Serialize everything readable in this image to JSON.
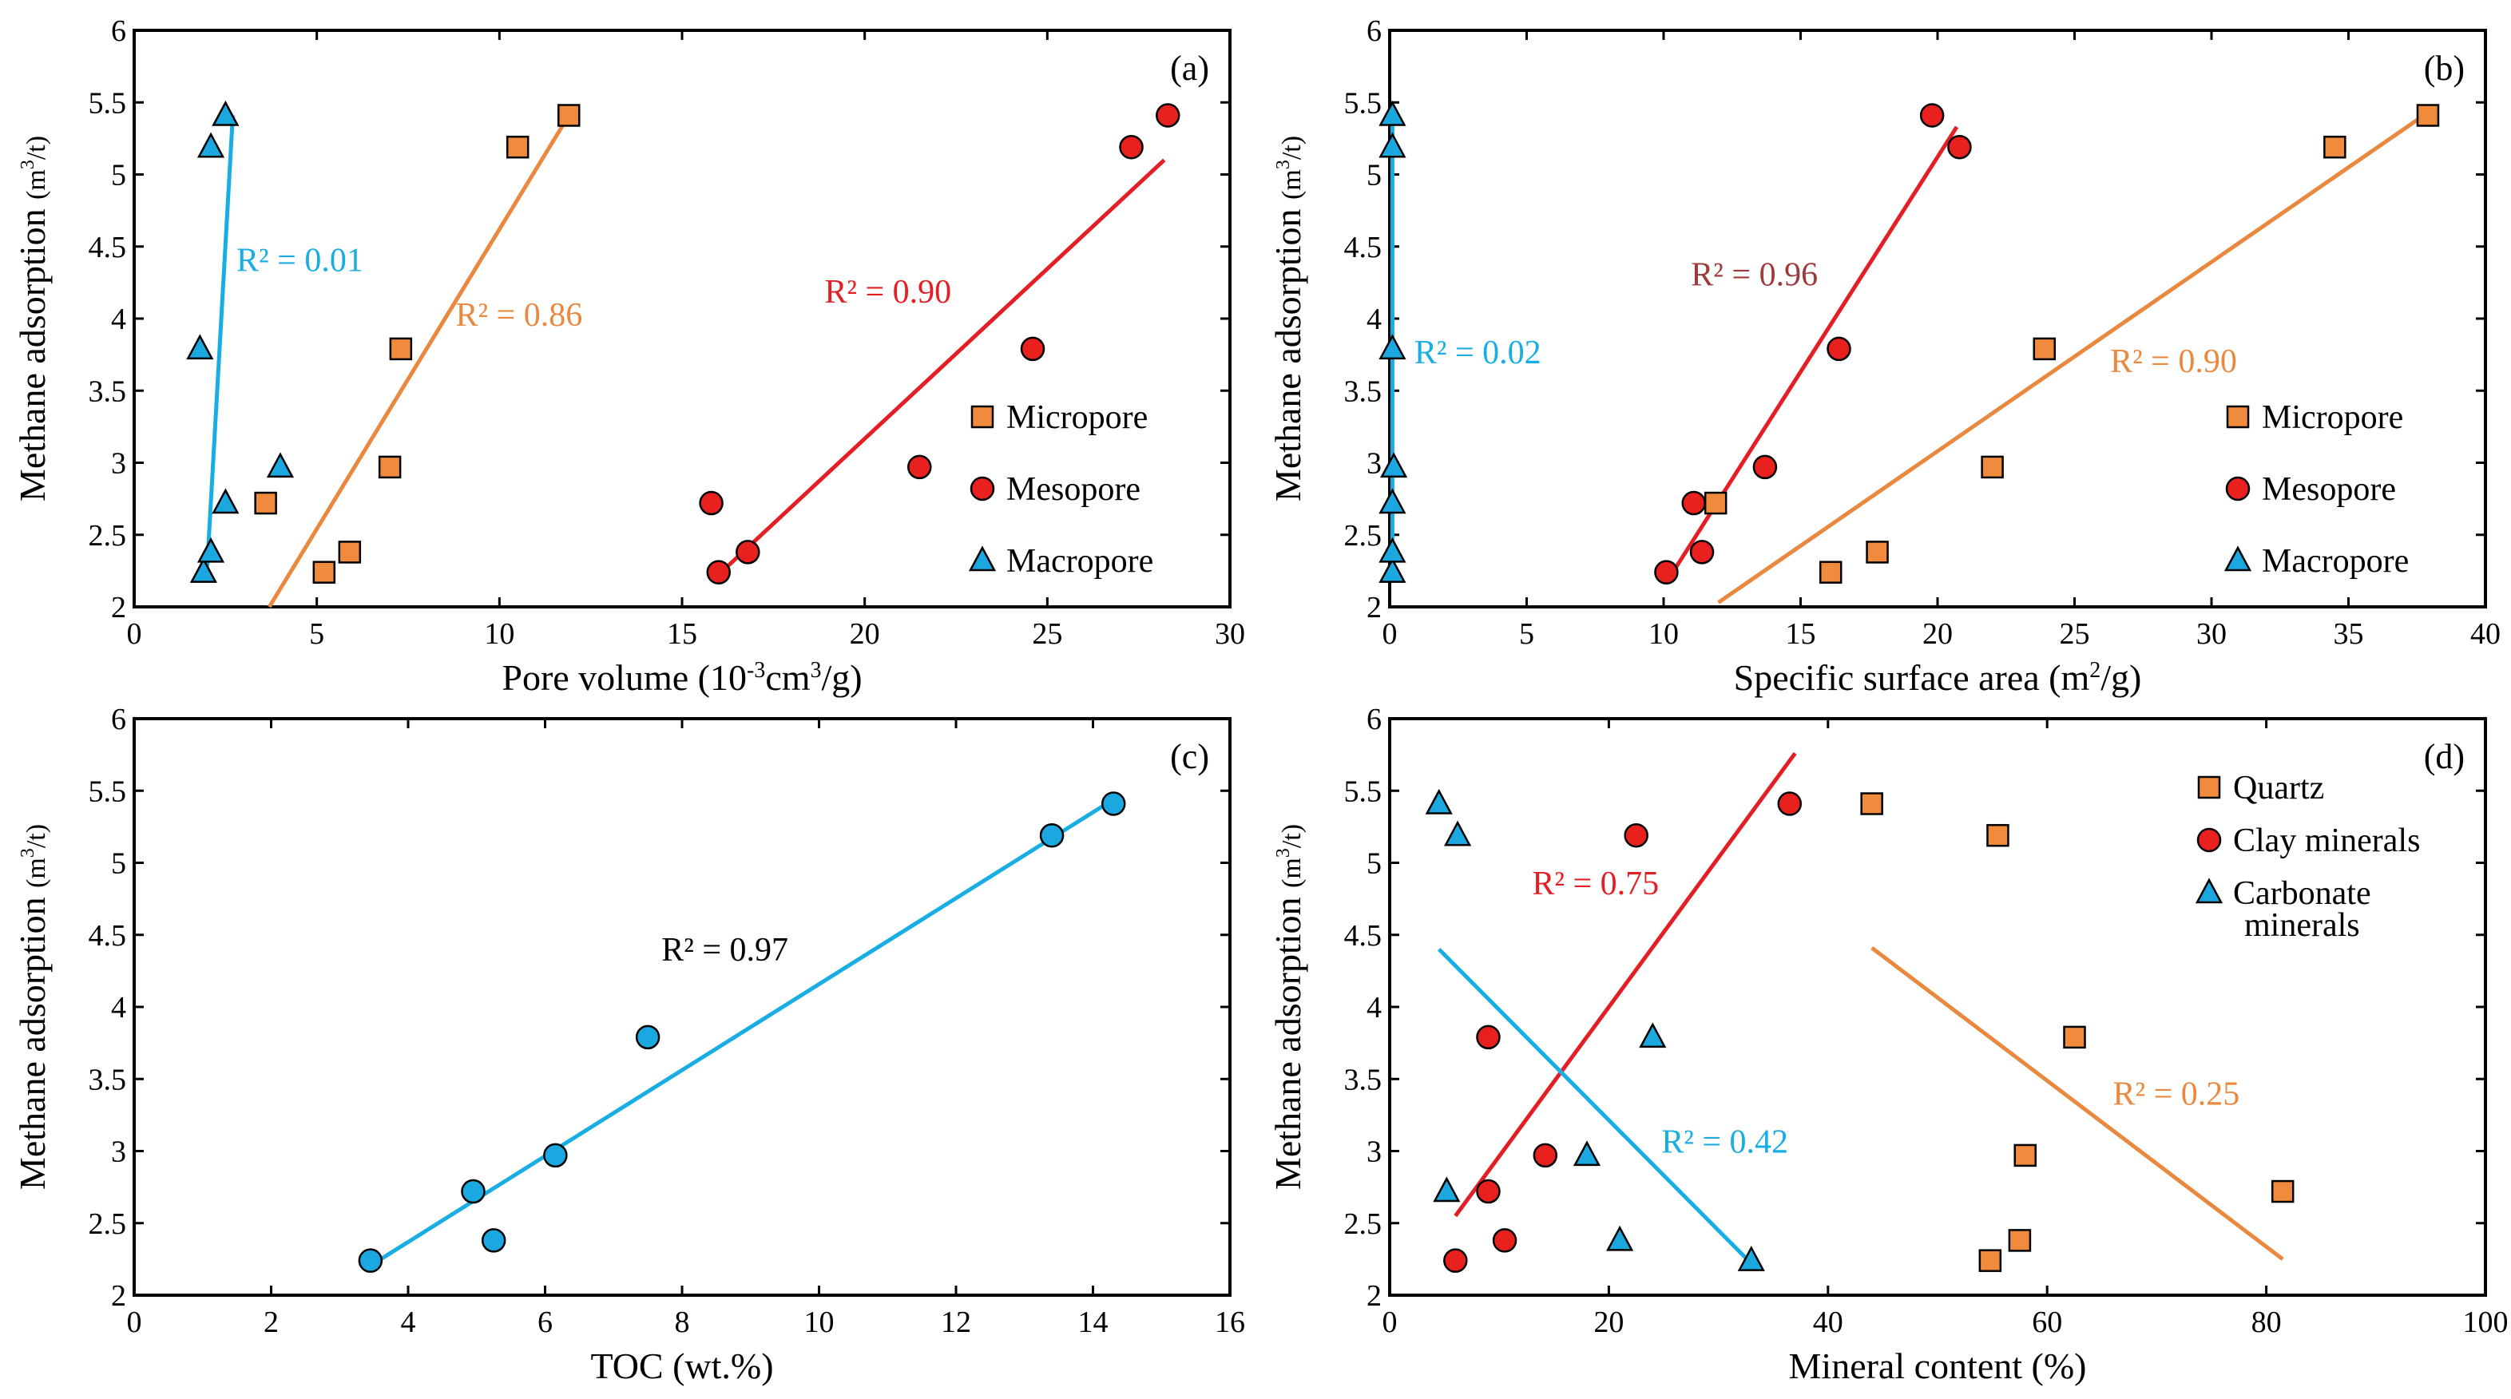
{
  "colors": {
    "micropore": "#F08A3C",
    "mesopore": "#E8201E",
    "macropore": "#1BA8E0",
    "toc": "#1BA8E0",
    "orange_line": "#E8893F",
    "red_line": "#E31F25",
    "blue_line": "#19AEE3",
    "r2_b_meso": "#9E3A3A"
  },
  "chart_data": [
    {
      "type": "scatter",
      "panel_label": "(a)",
      "xlabel_text": "Pore volume (10",
      "xlabel_sup1": "-3",
      "xlabel_mid": "cm",
      "xlabel_sup2": "3",
      "xlabel_end": "/g)",
      "ylabel_text": "Methane adsorption",
      "ylabel_unit": "(m",
      "ylabel_sup": "3",
      "ylabel_unit_end": "/t)",
      "xlim": [
        0,
        30
      ],
      "ylim": [
        2,
        6
      ],
      "xticks": [
        0,
        5,
        10,
        15,
        20,
        25,
        30
      ],
      "yticks": [
        2,
        2.5,
        3,
        3.5,
        4,
        4.5,
        5,
        5.5,
        6
      ],
      "legend": [
        "Micropore",
        "Mesopore",
        "Macropore"
      ],
      "series": [
        {
          "name": "Micropore",
          "marker": "square",
          "color_key": "micropore",
          "x": [
            5.2,
            5.9,
            3.6,
            7.0,
            7.3,
            10.5,
            11.9
          ],
          "y": [
            2.24,
            2.38,
            2.72,
            2.97,
            3.79,
            5.19,
            5.41
          ]
        },
        {
          "name": "Mesopore",
          "marker": "circle",
          "color_key": "mesopore",
          "x": [
            16.0,
            16.8,
            15.8,
            21.5,
            24.6,
            27.3,
            28.3
          ],
          "y": [
            2.24,
            2.38,
            2.72,
            2.97,
            3.79,
            5.19,
            5.41
          ]
        },
        {
          "name": "Macropore",
          "marker": "triangle",
          "color_key": "macropore",
          "x": [
            1.9,
            2.1,
            2.5,
            4.0,
            1.8,
            2.1,
            2.5
          ],
          "y": [
            2.24,
            2.38,
            2.72,
            2.97,
            3.79,
            5.19,
            5.41
          ]
        }
      ],
      "fits": [
        {
          "x1": 3.7,
          "y1": 2.0,
          "x2": 11.9,
          "y2": 5.41,
          "color_key": "orange_line",
          "r2": "R² = 0.86",
          "label_x": 8.8,
          "label_y": 3.95,
          "label_color_key": "orange_line"
        },
        {
          "x1": 15.9,
          "y1": 2.2,
          "x2": 28.2,
          "y2": 5.1,
          "color_key": "red_line",
          "r2": "R² = 0.90",
          "label_x": 18.9,
          "label_y": 4.11,
          "label_color_key": "red_line"
        },
        {
          "x1": 2.0,
          "y1": 2.28,
          "x2": 2.7,
          "y2": 5.41,
          "color_key": "blue_line",
          "r2": "R² = 0.01",
          "label_x": 2.8,
          "label_y": 4.33,
          "label_color_key": "blue_line"
        }
      ]
    },
    {
      "type": "scatter",
      "panel_label": "(b)",
      "xlabel_text": "Specific surface area (m",
      "xlabel_sup1": "2",
      "xlabel_mid": "/g)",
      "xlabel_sup2": "",
      "xlabel_end": "",
      "ylabel_text": "Methane adsorption",
      "ylabel_unit": "(m",
      "ylabel_sup": "3",
      "ylabel_unit_end": "/t)",
      "xlim": [
        0,
        40
      ],
      "ylim": [
        2,
        6
      ],
      "xticks": [
        0,
        5,
        10,
        15,
        20,
        25,
        30,
        35,
        40
      ],
      "yticks": [
        2,
        2.5,
        3,
        3.5,
        4,
        4.5,
        5,
        5.5,
        6
      ],
      "legend": [
        "Micropore",
        "Mesopore",
        "Macropore"
      ],
      "series": [
        {
          "name": "Micropore",
          "marker": "square",
          "color_key": "micropore",
          "x": [
            16.1,
            17.8,
            11.9,
            22.0,
            23.9,
            34.5,
            37.9
          ],
          "y": [
            2.24,
            2.38,
            2.72,
            2.97,
            3.79,
            5.19,
            5.41
          ]
        },
        {
          "name": "Mesopore",
          "marker": "circle",
          "color_key": "mesopore",
          "x": [
            10.1,
            11.4,
            11.1,
            13.7,
            16.4,
            20.8,
            19.8
          ],
          "y": [
            2.24,
            2.38,
            2.72,
            2.97,
            3.79,
            5.19,
            5.41
          ]
        },
        {
          "name": "Macropore",
          "marker": "triangle",
          "color_key": "macropore",
          "x": [
            0.1,
            0.1,
            0.1,
            0.15,
            0.1,
            0.1,
            0.1
          ],
          "y": [
            2.24,
            2.38,
            2.72,
            2.97,
            3.79,
            5.19,
            5.41
          ]
        }
      ],
      "fits": [
        {
          "x1": 12.0,
          "y1": 2.03,
          "x2": 37.9,
          "y2": 5.43,
          "color_key": "orange_line",
          "r2": "R² = 0.90",
          "label_x": 26.3,
          "label_y": 3.63,
          "label_color_key": "orange_line"
        },
        {
          "x1": 10.1,
          "y1": 2.17,
          "x2": 20.7,
          "y2": 5.33,
          "color_key": "red_line",
          "r2": "R² = 0.96",
          "label_x": 11.0,
          "label_y": 4.23,
          "label_color_key": "r2_b_meso"
        },
        {
          "x1": 0.1,
          "y1": 2.22,
          "x2": 0.1,
          "y2": 5.45,
          "color_key": "blue_line",
          "r2": "R² = 0.02",
          "label_x": 0.9,
          "label_y": 3.69,
          "label_color_key": "blue_line"
        }
      ]
    },
    {
      "type": "scatter",
      "panel_label": "(c)",
      "xlabel_text": "TOC (wt.%)",
      "xlabel_sup1": "",
      "xlabel_mid": "",
      "xlabel_sup2": "",
      "xlabel_end": "",
      "ylabel_text": "Methane adsorption",
      "ylabel_unit": "(m",
      "ylabel_sup": "3",
      "ylabel_unit_end": "/t)",
      "xlim": [
        0,
        16
      ],
      "ylim": [
        2,
        6
      ],
      "xticks": [
        0,
        2,
        4,
        6,
        8,
        10,
        12,
        14,
        16
      ],
      "yticks": [
        2,
        2.5,
        3,
        3.5,
        4,
        4.5,
        5,
        5.5,
        6
      ],
      "legend": [],
      "series": [
        {
          "name": "TOC",
          "marker": "circle",
          "color_key": "toc",
          "x": [
            3.45,
            5.25,
            4.95,
            6.15,
            7.5,
            13.4,
            14.3
          ],
          "y": [
            2.24,
            2.38,
            2.72,
            2.97,
            3.79,
            5.19,
            5.41
          ]
        }
      ],
      "fits": [
        {
          "x1": 3.5,
          "y1": 2.22,
          "x2": 14.3,
          "y2": 5.44,
          "color_key": "blue_line",
          "r2": "R² = 0.97",
          "label_x": 7.7,
          "label_y": 4.32,
          "label_color_key": "black"
        }
      ]
    },
    {
      "type": "scatter",
      "panel_label": "(d)",
      "xlabel_text": "Mineral content (%)",
      "xlabel_sup1": "",
      "xlabel_mid": "",
      "xlabel_sup2": "",
      "xlabel_end": "",
      "ylabel_text": "Methane adsorption",
      "ylabel_unit": "(m",
      "ylabel_sup": "3",
      "ylabel_unit_end": "/t)",
      "xlim": [
        0,
        100
      ],
      "ylim": [
        2,
        6
      ],
      "xticks": [
        0,
        20,
        40,
        60,
        80,
        100
      ],
      "yticks": [
        2,
        2.5,
        3,
        3.5,
        4,
        4.5,
        5,
        5.5,
        6
      ],
      "legend": [
        "Quartz",
        "Clay minerals",
        "Carbonate",
        "minerals"
      ],
      "series": [
        {
          "name": "Quartz",
          "marker": "square",
          "color_key": "micropore",
          "x": [
            54.8,
            57.5,
            81.5,
            58.0,
            62.5,
            55.5,
            44.0
          ],
          "y": [
            2.24,
            2.38,
            2.72,
            2.97,
            3.79,
            5.19,
            5.41
          ]
        },
        {
          "name": "Clay minerals",
          "marker": "circle",
          "color_key": "mesopore",
          "x": [
            6.0,
            10.5,
            9.0,
            14.2,
            9.0,
            22.5,
            36.5
          ],
          "y": [
            2.24,
            2.38,
            2.72,
            2.97,
            3.79,
            5.19,
            5.41
          ]
        },
        {
          "name": "Carbonate minerals",
          "marker": "triangle",
          "color_key": "macropore",
          "x": [
            33.0,
            21.0,
            5.2,
            18.0,
            24.0,
            6.2,
            4.5
          ],
          "y": [
            2.24,
            2.38,
            2.72,
            2.97,
            3.79,
            5.19,
            5.41
          ]
        }
      ],
      "fits": [
        {
          "x1": 44.0,
          "y1": 4.41,
          "x2": 81.5,
          "y2": 2.25,
          "color_key": "orange_line",
          "r2": "R² = 0.25",
          "label_x": 66.0,
          "label_y": 3.32,
          "label_color_key": "orange_line"
        },
        {
          "x1": 6.0,
          "y1": 2.55,
          "x2": 37.0,
          "y2": 5.76,
          "color_key": "red_line",
          "r2": "R² = 0.75",
          "label_x": 13.0,
          "label_y": 4.78,
          "label_color_key": "red_line"
        },
        {
          "x1": 4.5,
          "y1": 4.4,
          "x2": 33.0,
          "y2": 2.22,
          "color_key": "blue_line",
          "r2": "R² = 0.42",
          "label_x": 24.8,
          "label_y": 2.99,
          "label_color_key": "blue_line"
        }
      ]
    }
  ]
}
